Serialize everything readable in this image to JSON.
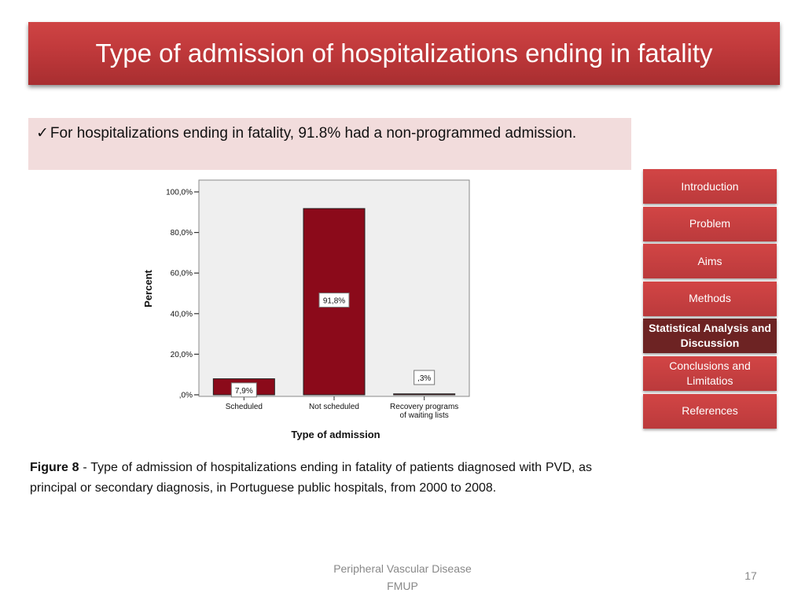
{
  "slide": {
    "title": "Type of admission of hospitalizations ending in fatality",
    "bullet_check": "✓",
    "bullet_text": "For hospitalizations ending in fatality, 91.8% had a non-programmed admission.",
    "caption_label": "Figure 8",
    "caption_text": " - Type of admission of hospitalizations ending in fatality of patients diagnosed with PVD, as principal or secondary diagnosis, in Portuguese public hospitals, from 2000 to 2008.",
    "footer_line1": "Peripheral Vascular Disease",
    "footer_line2": "FMUP",
    "page_number": "17"
  },
  "nav": {
    "items": [
      {
        "label": "Introduction",
        "active": false
      },
      {
        "label": "Problem",
        "active": false
      },
      {
        "label": "Aims",
        "active": false
      },
      {
        "label": "Methods",
        "active": false
      },
      {
        "label": "Statistical Analysis and Discussion",
        "active": true
      },
      {
        "label": "Conclusions and Limitatios",
        "active": false
      },
      {
        "label": "References",
        "active": false
      }
    ]
  },
  "chart_data": {
    "type": "bar",
    "categories": [
      "Scheduled",
      "Not scheduled",
      "Recovery programs of waiting lists"
    ],
    "category_labels": [
      [
        "Scheduled"
      ],
      [
        "Not scheduled"
      ],
      [
        "Recovery programs",
        "of waiting lists"
      ]
    ],
    "values": [
      7.9,
      91.8,
      0.3
    ],
    "data_labels": [
      "7,9%",
      "91,8%",
      ",3%"
    ],
    "xlabel": "Type of admission",
    "ylabel": "Percent",
    "ylim": [
      0,
      100
    ],
    "yticks": [
      0,
      20,
      40,
      60,
      80,
      100
    ],
    "ytick_labels": [
      ",0%",
      "20,0%",
      "40,0%",
      "60,0%",
      "80,0%",
      "100,0%"
    ],
    "bar_color": "#8b0a1a",
    "plot_background": "#efefef",
    "grid": false
  }
}
